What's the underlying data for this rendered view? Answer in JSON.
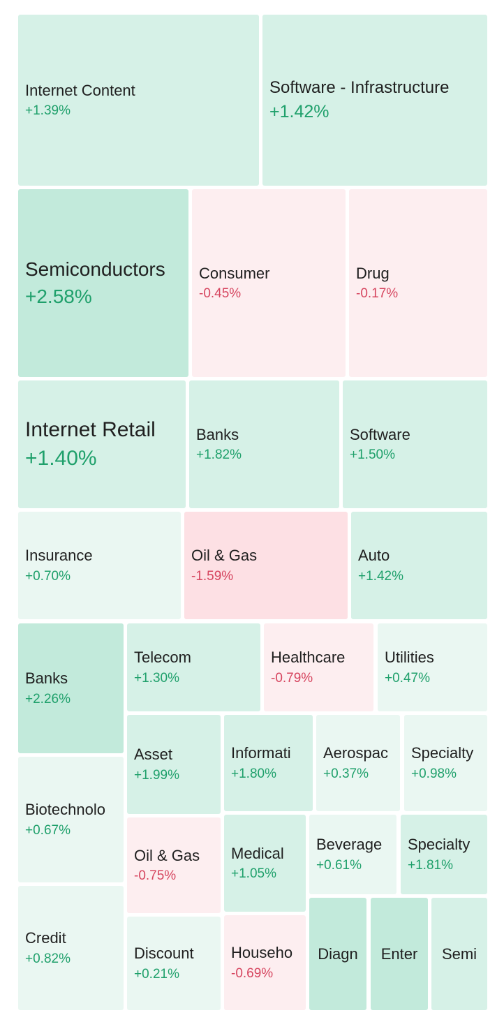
{
  "chart_data": {
    "type": "treemap",
    "colors": {
      "pos_strong": "#c2eadb",
      "pos_mid": "#d6f1e7",
      "pos_light": "#eaf7f2",
      "neg_strong": "#fde0e4",
      "neg_light": "#fdeef0",
      "pos_text": "#1fa06b",
      "neg_text": "#d6455f"
    },
    "tiles": [
      {
        "label": "Internet Content",
        "change": "+1.39%",
        "value": 1.39
      },
      {
        "label": "Software - Infrastructure",
        "change": "+1.42%",
        "value": 1.42
      },
      {
        "label": "Semiconductors",
        "change": "+2.58%",
        "value": 2.58
      },
      {
        "label": "Consumer",
        "change": "-0.45%",
        "value": -0.45
      },
      {
        "label": "Drug",
        "change": "-0.17%",
        "value": -0.17
      },
      {
        "label": "Internet Retail",
        "change": "+1.40%",
        "value": 1.4
      },
      {
        "label": "Banks",
        "change": "+1.82%",
        "value": 1.82
      },
      {
        "label": "Software",
        "change": "+1.50%",
        "value": 1.5
      },
      {
        "label": "Insurance",
        "change": "+0.70%",
        "value": 0.7
      },
      {
        "label": "Oil & Gas",
        "change": "-1.59%",
        "value": -1.59
      },
      {
        "label": "Auto",
        "change": "+1.42%",
        "value": 1.42
      },
      {
        "label": "Banks",
        "change": "+2.26%",
        "value": 2.26
      },
      {
        "label": "Telecom",
        "change": "+1.30%",
        "value": 1.3
      },
      {
        "label": "Healthcare",
        "change": "-0.79%",
        "value": -0.79
      },
      {
        "label": "Utilities",
        "change": "+0.47%",
        "value": 0.47
      },
      {
        "label": "Biotechnolo",
        "change": "+0.67%",
        "value": 0.67
      },
      {
        "label": "Asset",
        "change": "+1.99%",
        "value": 1.99
      },
      {
        "label": "Informati",
        "change": "+1.80%",
        "value": 1.8
      },
      {
        "label": "Aerospac",
        "change": "+0.37%",
        "value": 0.37
      },
      {
        "label": "Specialty",
        "change": "+0.98%",
        "value": 0.98
      },
      {
        "label": "Oil & Gas",
        "change": "-0.75%",
        "value": -0.75
      },
      {
        "label": "Medical",
        "change": "+1.05%",
        "value": 1.05
      },
      {
        "label": "Beverage",
        "change": "+0.61%",
        "value": 0.61
      },
      {
        "label": "Specialty",
        "change": "+1.81%",
        "value": 1.81
      },
      {
        "label": "Credit",
        "change": "+0.82%",
        "value": 0.82
      },
      {
        "label": "Discount",
        "change": "+0.21%",
        "value": 0.21
      },
      {
        "label": "Househo",
        "change": "-0.69%",
        "value": -0.69
      },
      {
        "label": "Diagn",
        "change": "",
        "value": null
      },
      {
        "label": "Enter",
        "change": "",
        "value": null
      },
      {
        "label": "Semi",
        "change": "",
        "value": null
      }
    ]
  }
}
